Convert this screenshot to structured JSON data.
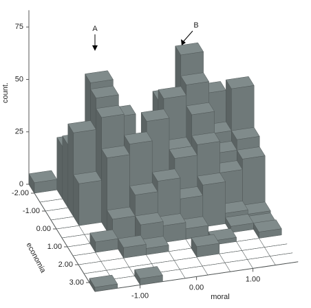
{
  "chart_data": {
    "type": "bar3d",
    "z_label": "count.",
    "y_label": "economia",
    "x_label": "moral",
    "annotations": [
      "A",
      "B"
    ],
    "color": "#6f7979",
    "zlim": [
      0,
      83
    ],
    "zticks": [
      0,
      25,
      50,
      75
    ],
    "ylim": [
      -2.5,
      3.5
    ],
    "yticks": [
      {
        "value": -2,
        "label": "-2.00"
      },
      {
        "value": -1,
        "label": "-1.00"
      },
      {
        "value": 0,
        "label": "0.00"
      },
      {
        "value": 1,
        "label": "1.00"
      },
      {
        "value": 2,
        "label": "2.00"
      },
      {
        "value": 3,
        "label": "3.00"
      }
    ],
    "xlim": [
      -1.8,
      1.8
    ],
    "xticks": [
      {
        "value": -1,
        "label": "-1.00"
      },
      {
        "value": 0,
        "label": "0.00"
      },
      {
        "value": 1,
        "label": "1.00"
      }
    ],
    "economia_edges": [
      -2.5,
      -2.0,
      -1.5,
      -1.0,
      -0.5,
      0.0,
      0.5,
      1.0,
      1.5,
      2.0,
      2.5,
      3.0,
      3.5
    ],
    "moral_edges": [
      -1.8,
      -1.4,
      -1.0,
      -0.6,
      -0.2,
      0.2,
      0.6,
      1.0,
      1.4,
      1.8
    ],
    "counts": [
      [
        5,
        0,
        0,
        0,
        0,
        0,
        0,
        0,
        0
      ],
      [
        0,
        25,
        28,
        20,
        0,
        12,
        0,
        10,
        0
      ],
      [
        0,
        30,
        58,
        40,
        0,
        45,
        65,
        45,
        35
      ],
      [
        0,
        40,
        55,
        30,
        25,
        50,
        55,
        30,
        50
      ],
      [
        0,
        20,
        50,
        35,
        45,
        30,
        45,
        25,
        30
      ],
      [
        0,
        0,
        35,
        40,
        20,
        30,
        35,
        20,
        25
      ],
      [
        0,
        0,
        10,
        20,
        25,
        15,
        20,
        5,
        3
      ],
      [
        0,
        5,
        0,
        10,
        8,
        5,
        0,
        3,
        2
      ],
      [
        0,
        0,
        5,
        3,
        0,
        0,
        2,
        0,
        3
      ],
      [
        0,
        0,
        0,
        0,
        0,
        5,
        0,
        0,
        0
      ],
      [
        0,
        0,
        0,
        0,
        0,
        0,
        0,
        0,
        0
      ],
      [
        2,
        0,
        3,
        0,
        0,
        0,
        0,
        0,
        0
      ]
    ]
  }
}
